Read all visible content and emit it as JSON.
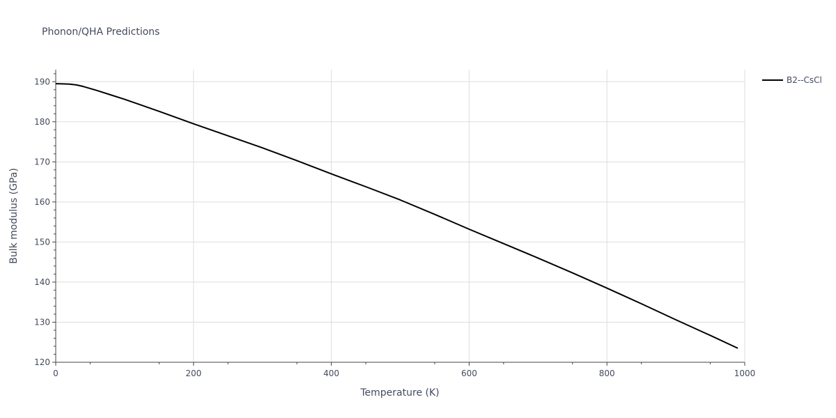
{
  "chart_data": {
    "type": "line",
    "title": "Phonon/QHA Predictions",
    "xlabel": "Temperature (K)",
    "ylabel": "Bulk modulus (GPa)",
    "xlim": [
      0,
      1000
    ],
    "ylim": [
      120,
      193
    ],
    "x_ticks": [
      0,
      200,
      400,
      600,
      800,
      1000
    ],
    "y_ticks": [
      120,
      130,
      140,
      150,
      160,
      170,
      180,
      190
    ],
    "grid": true,
    "legend_position": "top-right",
    "colors": {
      "line": "#000000",
      "grid": "#dddddd",
      "axis": "#444444"
    },
    "series": [
      {
        "name": "B2--CsCl",
        "x": [
          0,
          10,
          20,
          30,
          40,
          50,
          60,
          80,
          100,
          120,
          150,
          200,
          250,
          300,
          350,
          400,
          450,
          500,
          550,
          600,
          650,
          700,
          750,
          800,
          850,
          900,
          950,
          990
        ],
        "y": [
          189.5,
          189.45,
          189.4,
          189.2,
          188.8,
          188.3,
          187.8,
          186.7,
          185.6,
          184.4,
          182.6,
          179.5,
          176.5,
          173.5,
          170.3,
          167.0,
          163.8,
          160.5,
          156.9,
          153.2,
          149.6,
          146.0,
          142.3,
          138.5,
          134.6,
          130.6,
          126.7,
          123.5
        ]
      }
    ]
  }
}
